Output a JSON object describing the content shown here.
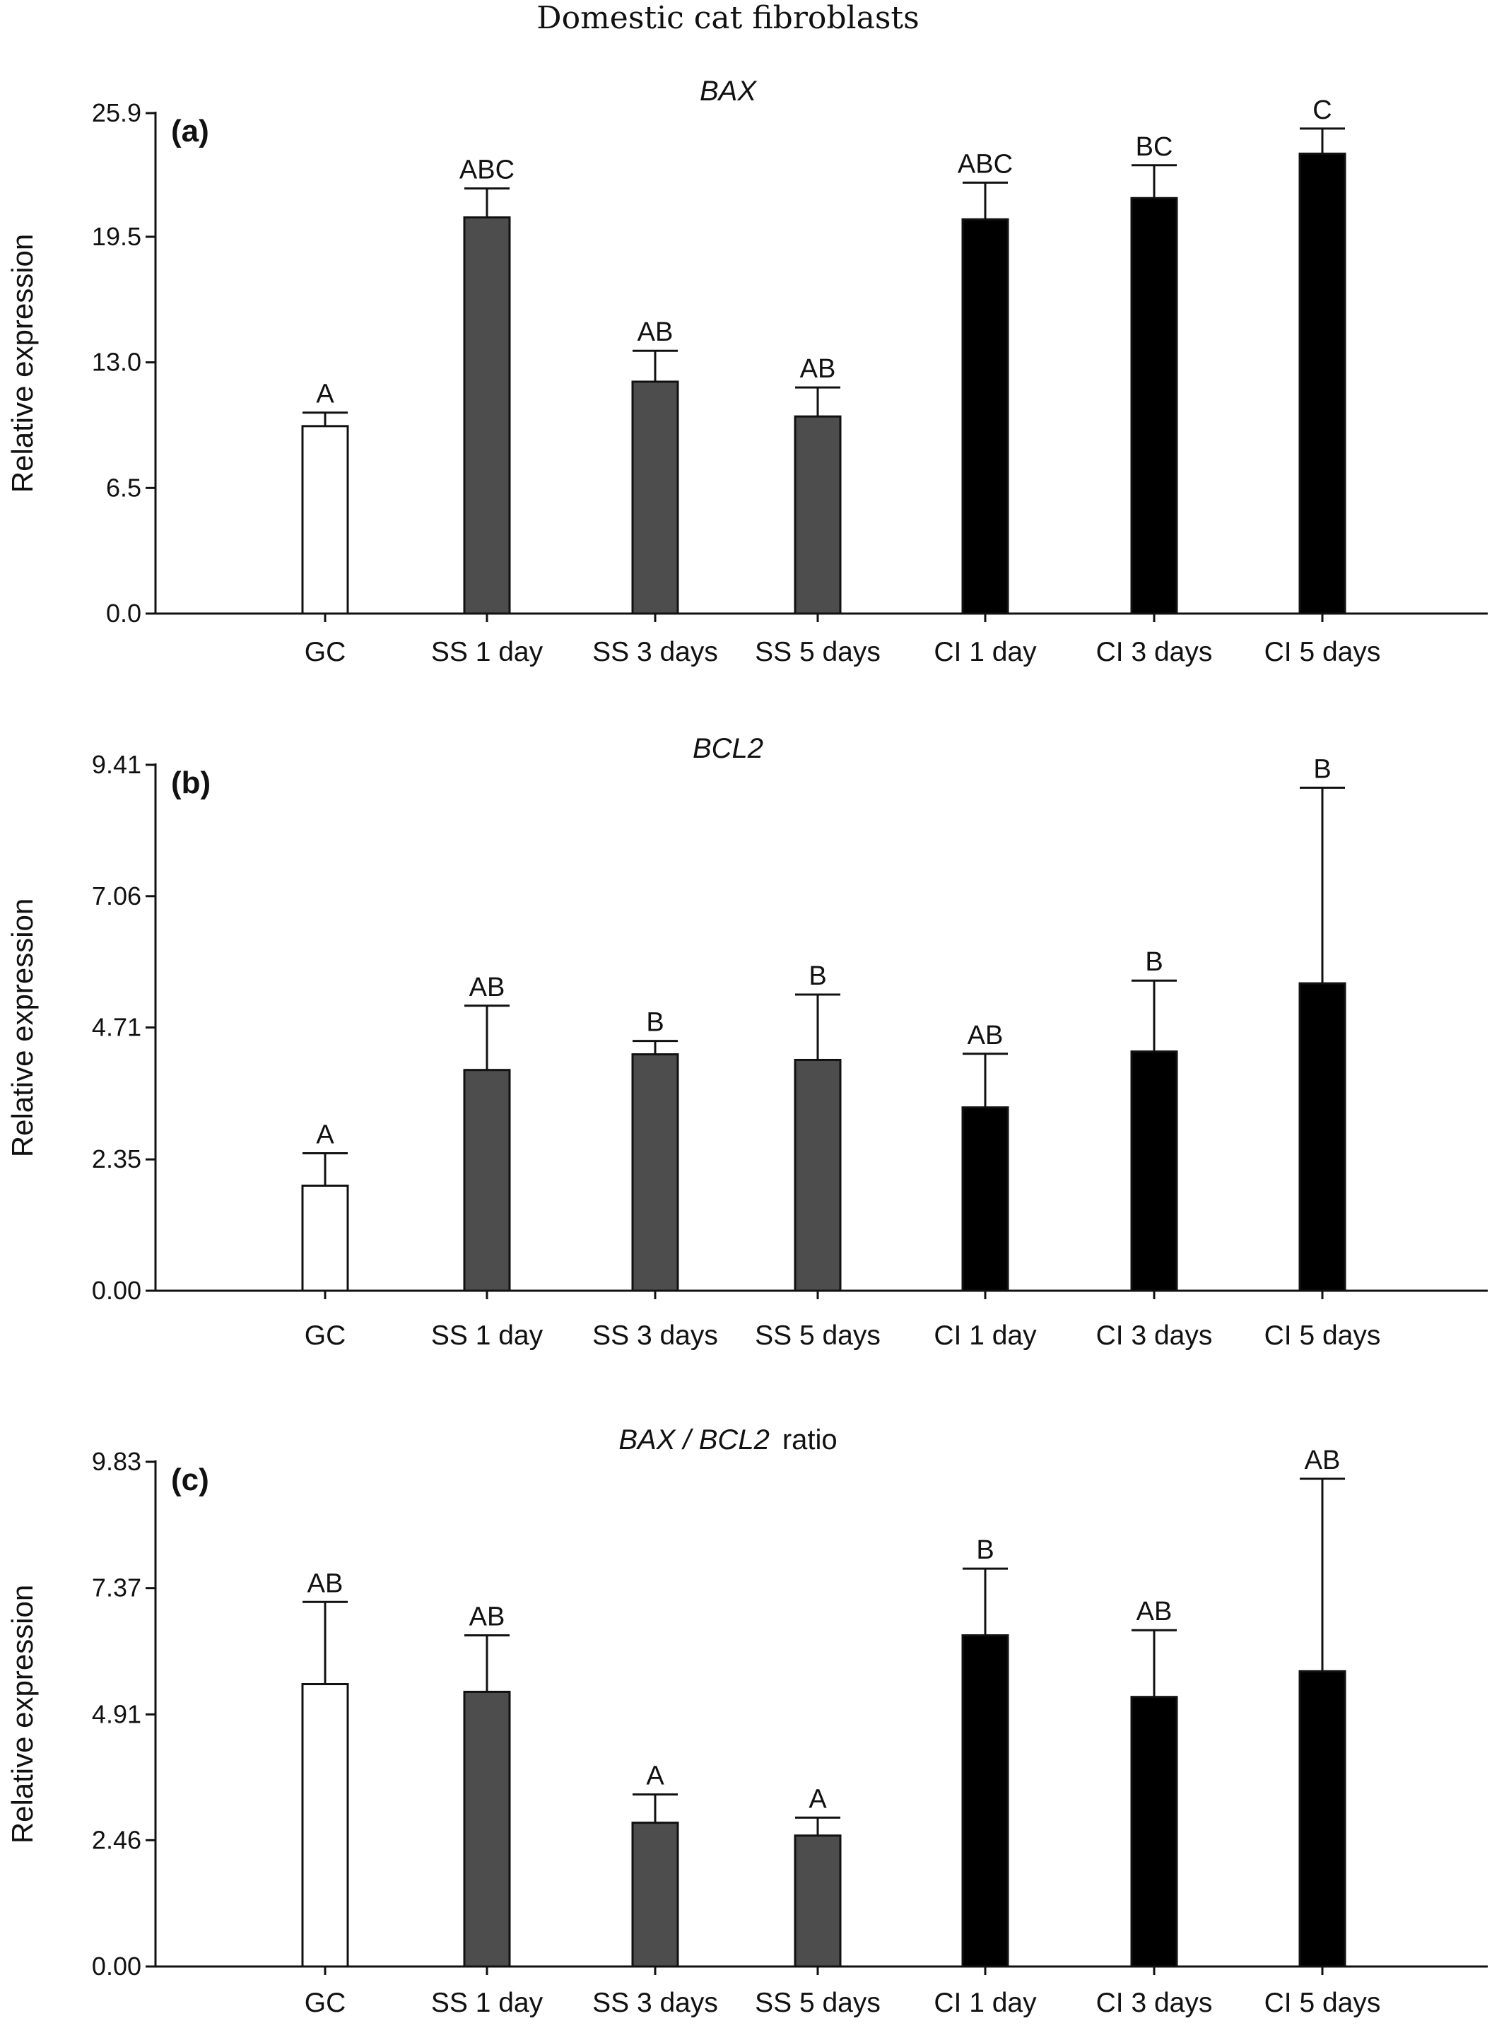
{
  "figure": {
    "title": "Domestic cat fibroblasts"
  },
  "colors": {
    "control": "#ffffff",
    "ss": "#4d4d4d",
    "ci": "#000000"
  },
  "chart_data": [
    {
      "type": "bar",
      "panel_letter": "(a)",
      "title": {
        "italic": "BAX",
        "suffix": ""
      },
      "ylabel": "Relative expression",
      "xlabel": "",
      "categories": [
        "GC",
        "SS 1 day",
        "SS 3 days",
        "SS 5 days",
        "CI 1 day",
        "CI 3 days",
        "CI 5 days"
      ],
      "values": [
        9.7,
        20.5,
        12.0,
        10.2,
        20.4,
        21.5,
        23.8
      ],
      "errors": [
        0.7,
        1.5,
        1.6,
        1.5,
        1.9,
        1.7,
        1.3
      ],
      "significance": [
        "A",
        "ABC",
        "AB",
        "AB",
        "ABC",
        "BC",
        "C"
      ],
      "bar_colors": [
        "control",
        "ss",
        "ss",
        "ss",
        "ci",
        "ci",
        "ci"
      ],
      "yticks": [
        "0.0",
        "6.5",
        "13.0",
        "19.5",
        "25.9"
      ],
      "ylim": [
        0,
        25.9
      ],
      "grid": false
    },
    {
      "type": "bar",
      "panel_letter": "(b)",
      "title": {
        "italic": "BCL2",
        "suffix": ""
      },
      "ylabel": "Relative expression",
      "xlabel": "",
      "categories": [
        "GC",
        "SS 1 day",
        "SS 3 days",
        "SS 5 days",
        "CI 1 day",
        "CI 3 days",
        "CI 5 days"
      ],
      "values": [
        1.88,
        3.95,
        4.23,
        4.13,
        3.28,
        4.28,
        5.5
      ],
      "errors": [
        0.58,
        1.15,
        0.24,
        1.17,
        0.96,
        1.27,
        3.5
      ],
      "significance": [
        "A",
        "AB",
        "B",
        "B",
        "AB",
        "B",
        "B"
      ],
      "bar_colors": [
        "control",
        "ss",
        "ss",
        "ss",
        "ci",
        "ci",
        "ci"
      ],
      "yticks": [
        "0.00",
        "2.35",
        "4.71",
        "7.06",
        "9.41"
      ],
      "ylim": [
        0,
        9.41
      ],
      "grid": false
    },
    {
      "type": "bar",
      "panel_letter": "(c)",
      "title": {
        "italic": "BAX / BCL2",
        "suffix": "ratio"
      },
      "ylabel": "Relative expression",
      "xlabel": "",
      "categories": [
        "GC",
        "SS 1 day",
        "SS 3 days",
        "SS 5 days",
        "CI 1 day",
        "CI 3 days",
        "CI 5 days"
      ],
      "values": [
        5.5,
        5.35,
        2.8,
        2.55,
        6.45,
        5.25,
        5.75
      ],
      "errors": [
        1.6,
        1.1,
        0.55,
        0.35,
        1.3,
        1.3,
        3.75
      ],
      "significance": [
        "AB",
        "AB",
        "A",
        "A",
        "B",
        "AB",
        "AB"
      ],
      "bar_colors": [
        "control",
        "ss",
        "ss",
        "ss",
        "ci",
        "ci",
        "ci"
      ],
      "yticks": [
        "0.00",
        "2.46",
        "4.91",
        "7.37",
        "9.83"
      ],
      "ylim": [
        0,
        9.83
      ],
      "grid": false
    }
  ]
}
